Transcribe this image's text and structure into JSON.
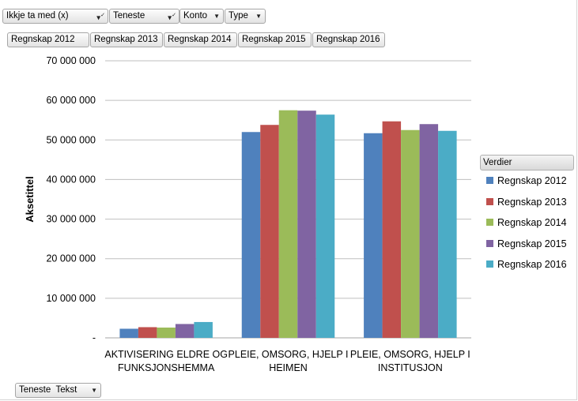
{
  "filters": [
    {
      "label": "Ikkje ta med (x)",
      "icon": "filter-dropdown-icon"
    },
    {
      "label": "Teneste",
      "icon": "filter-dropdown-icon"
    },
    {
      "label": "Konto",
      "icon": "chevron-down-icon"
    },
    {
      "label": "Type",
      "icon": "chevron-down-icon"
    }
  ],
  "series_buttons": [
    "Regnskap 2012",
    "Regnskap 2013",
    "Regnskap 2014",
    "Regnskap 2015",
    "Regnskap 2016"
  ],
  "axis_field": {
    "label": "Teneste  Tekst",
    "icon": "chevron-down-icon"
  },
  "legend_title": "Verdier",
  "chart_data": {
    "type": "bar",
    "title": "",
    "xlabel": "",
    "ylabel": "Aksetittel",
    "ylim": [
      0,
      70000000
    ],
    "y_ticks": [
      0,
      10000000,
      20000000,
      30000000,
      40000000,
      50000000,
      60000000,
      70000000
    ],
    "y_tick_labels": [
      "-",
      "10 000 000",
      "20 000 000",
      "30 000 000",
      "40 000 000",
      "50 000 000",
      "60 000 000",
      "70 000 000"
    ],
    "categories": [
      [
        "AKTIVISERING ELDRE OG",
        "FUNKSJONSHEMMA"
      ],
      [
        "PLEIE, OMSORG, HJELP I",
        "HEIMEN"
      ],
      [
        "PLEIE, OMSORG, HJELP I",
        "INSTITUSJON"
      ]
    ],
    "grid": true,
    "legend_position": "right",
    "series": [
      {
        "name": "Regnskap 2012",
        "color": "#4f81bd",
        "values": [
          2300000,
          52000000,
          51700000
        ]
      },
      {
        "name": "Regnskap 2013",
        "color": "#c0504d",
        "values": [
          2700000,
          53800000,
          54700000
        ]
      },
      {
        "name": "Regnskap 2014",
        "color": "#9bbb59",
        "values": [
          2600000,
          57500000,
          52500000
        ]
      },
      {
        "name": "Regnskap 2015",
        "color": "#8064a2",
        "values": [
          3500000,
          57400000,
          54000000
        ]
      },
      {
        "name": "Regnskap 2016",
        "color": "#4bacc6",
        "values": [
          4000000,
          56400000,
          52300000
        ]
      }
    ]
  }
}
